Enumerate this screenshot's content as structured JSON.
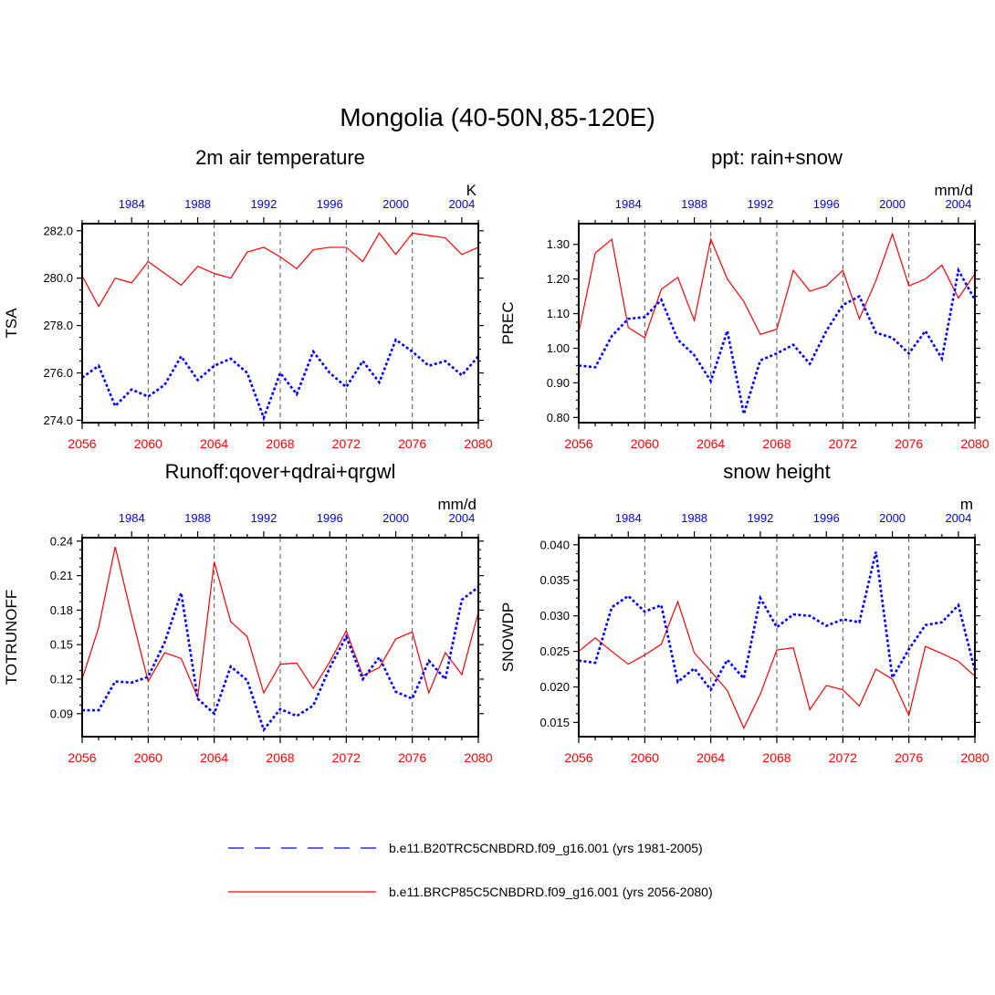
{
  "figure": {
    "title": "Mongolia (40-50N,85-120E)"
  },
  "colors": {
    "future": "#ff0000",
    "historical": "#0000ff",
    "reference_line": "#555555"
  },
  "legend": [
    {
      "style": "dashed",
      "color": "#0000ff",
      "label": "b.e11.B20TRC5CNBDRD.f09_g16.001 (yrs 1981-2005)"
    },
    {
      "style": "solid",
      "color": "#ff0000",
      "label": "b.e11.BRCP85C5CNBDRD.f09_g16.001 (yrs 2056-2080)"
    }
  ],
  "chart_data": [
    {
      "type": "line",
      "title": "2m air temperature",
      "ylabel": "TSA",
      "units": "K",
      "xlim": [
        2056,
        2080
      ],
      "ylim": [
        273.9,
        282.3
      ],
      "ytick_values": [
        274,
        276,
        278,
        280,
        282
      ],
      "ytick_labels": [
        "274.0",
        "276.0",
        "278.0",
        "280.0",
        "282.0"
      ],
      "x_bottom_ticks": [
        2056,
        2060,
        2064,
        2068,
        2072,
        2076,
        2080
      ],
      "x_top_ticks": [
        1984,
        1988,
        1992,
        1996,
        2000,
        2004
      ],
      "reference_years": [
        2060,
        2064,
        2068,
        2072,
        2076
      ],
      "x": [
        2056,
        2057,
        2058,
        2059,
        2060,
        2061,
        2062,
        2063,
        2064,
        2065,
        2066,
        2067,
        2068,
        2069,
        2070,
        2071,
        2072,
        2073,
        2074,
        2075,
        2076,
        2077,
        2078,
        2079,
        2080
      ],
      "series": [
        {
          "name": "b.e11.B20TRC5CNBDRD.f09_g16.001 (yrs 1981-2005)",
          "style": "dashed",
          "color": "#0000ff",
          "values": [
            275.8,
            276.3,
            274.6,
            275.3,
            275.0,
            275.5,
            276.7,
            275.7,
            276.3,
            276.6,
            276.0,
            274.1,
            276.0,
            275.1,
            276.9,
            276.0,
            275.4,
            276.5,
            275.6,
            277.4,
            276.9,
            276.3,
            276.5,
            275.9,
            276.7
          ]
        },
        {
          "name": "b.e11.BRCP85C5CNBDRD.f09_g16.001 (yrs 2056-2080)",
          "style": "solid",
          "color": "#ff0000",
          "values": [
            280.1,
            278.8,
            280.0,
            279.8,
            280.7,
            280.2,
            279.7,
            280.5,
            280.2,
            280.0,
            281.1,
            281.3,
            280.9,
            280.4,
            281.2,
            281.3,
            281.3,
            280.7,
            281.9,
            281.0,
            281.9,
            281.8,
            281.7,
            281.0,
            281.3
          ]
        }
      ]
    },
    {
      "type": "line",
      "title": "ppt: rain+snow",
      "ylabel": "PREC",
      "units": "mm/d",
      "xlim": [
        2056,
        2080
      ],
      "ylim": [
        0.785,
        1.36
      ],
      "ytick_values": [
        0.8,
        0.9,
        1.0,
        1.1,
        1.2,
        1.3
      ],
      "ytick_labels": [
        "0.80",
        "0.90",
        "1.00",
        "1.10",
        "1.20",
        "1.30"
      ],
      "x_bottom_ticks": [
        2056,
        2060,
        2064,
        2068,
        2072,
        2076,
        2080
      ],
      "x_top_ticks": [
        1984,
        1988,
        1992,
        1996,
        2000,
        2004
      ],
      "reference_years": [
        2060,
        2064,
        2068,
        2072,
        2076
      ],
      "x": [
        2056,
        2057,
        2058,
        2059,
        2060,
        2061,
        2062,
        2063,
        2064,
        2065,
        2066,
        2067,
        2068,
        2069,
        2070,
        2071,
        2072,
        2073,
        2074,
        2075,
        2076,
        2077,
        2078,
        2079,
        2080
      ],
      "series": [
        {
          "name": "b.e11.B20TRC5CNBDRD.f09_g16.001 (yrs 1981-2005)",
          "style": "dashed",
          "color": "#0000ff",
          "values": [
            0.95,
            0.945,
            1.035,
            1.085,
            1.09,
            1.14,
            1.025,
            0.98,
            0.905,
            1.05,
            0.81,
            0.965,
            0.985,
            1.01,
            0.955,
            1.05,
            1.125,
            1.15,
            1.045,
            1.03,
            0.985,
            1.05,
            0.97,
            1.225,
            1.14
          ]
        },
        {
          "name": "b.e11.BRCP85C5CNBDRD.f09_g16.001 (yrs 2056-2080)",
          "style": "solid",
          "color": "#ff0000",
          "values": [
            1.045,
            1.275,
            1.315,
            1.06,
            1.03,
            1.17,
            1.205,
            1.08,
            1.315,
            1.2,
            1.135,
            1.04,
            1.055,
            1.225,
            1.165,
            1.18,
            1.225,
            1.085,
            1.195,
            1.33,
            1.18,
            1.2,
            1.24,
            1.145,
            1.215
          ]
        }
      ]
    },
    {
      "type": "line",
      "title": "Runoff:qover+qdrai+qrgwl",
      "ylabel": "TOTRUNOFF",
      "units": "mm/d",
      "xlim": [
        2056,
        2080
      ],
      "ylim": [
        0.07,
        0.243
      ],
      "ytick_values": [
        0.09,
        0.12,
        0.15,
        0.18,
        0.21,
        0.24
      ],
      "ytick_labels": [
        "0.09",
        "0.12",
        "0.15",
        "0.18",
        "0.21",
        "0.24"
      ],
      "x_bottom_ticks": [
        2056,
        2060,
        2064,
        2068,
        2072,
        2076,
        2080
      ],
      "x_top_ticks": [
        1984,
        1988,
        1992,
        1996,
        2000,
        2004
      ],
      "reference_years": [
        2060,
        2064,
        2068,
        2072,
        2076
      ],
      "x": [
        2056,
        2057,
        2058,
        2059,
        2060,
        2061,
        2062,
        2063,
        2064,
        2065,
        2066,
        2067,
        2068,
        2069,
        2070,
        2071,
        2072,
        2073,
        2074,
        2075,
        2076,
        2077,
        2078,
        2079,
        2080
      ],
      "series": [
        {
          "name": "b.e11.B20TRC5CNBDRD.f09_g16.001 (yrs 1981-2005)",
          "style": "dashed",
          "color": "#0000ff",
          "values": [
            0.093,
            0.093,
            0.118,
            0.117,
            0.122,
            0.152,
            0.195,
            0.103,
            0.09,
            0.131,
            0.119,
            0.076,
            0.094,
            0.088,
            0.097,
            0.13,
            0.157,
            0.12,
            0.139,
            0.109,
            0.103,
            0.136,
            0.12,
            0.189,
            0.2
          ]
        },
        {
          "name": "b.e11.BRCP85C5CNBDRD.f09_g16.001 (yrs 2056-2080)",
          "style": "solid",
          "color": "#ff0000",
          "values": [
            0.12,
            0.165,
            0.235,
            0.175,
            0.118,
            0.143,
            0.138,
            0.104,
            0.222,
            0.17,
            0.157,
            0.108,
            0.133,
            0.134,
            0.112,
            0.135,
            0.162,
            0.123,
            0.13,
            0.155,
            0.161,
            0.108,
            0.143,
            0.124,
            0.178
          ]
        }
      ]
    },
    {
      "type": "line",
      "title": "snow height",
      "ylabel": "SNOWDP",
      "units": "m",
      "xlim": [
        2056,
        2080
      ],
      "ylim": [
        0.013,
        0.041
      ],
      "ytick_values": [
        0.015,
        0.02,
        0.025,
        0.03,
        0.035,
        0.04
      ],
      "ytick_labels": [
        "0.015",
        "0.020",
        "0.025",
        "0.030",
        "0.035",
        "0.040"
      ],
      "x_bottom_ticks": [
        2056,
        2060,
        2064,
        2068,
        2072,
        2076,
        2080
      ],
      "x_top_ticks": [
        1984,
        1988,
        1992,
        1996,
        2000,
        2004
      ],
      "reference_years": [
        2060,
        2064,
        2068,
        2072,
        2076
      ],
      "x": [
        2056,
        2057,
        2058,
        2059,
        2060,
        2061,
        2062,
        2063,
        2064,
        2065,
        2066,
        2067,
        2068,
        2069,
        2070,
        2071,
        2072,
        2073,
        2074,
        2075,
        2076,
        2077,
        2078,
        2079,
        2080
      ],
      "series": [
        {
          "name": "b.e11.B20TRC5CNBDRD.f09_g16.001 (yrs 1981-2005)",
          "style": "dashed",
          "color": "#0000ff",
          "values": [
            0.0237,
            0.0234,
            0.0312,
            0.0328,
            0.0306,
            0.0315,
            0.0207,
            0.0226,
            0.0196,
            0.0238,
            0.0212,
            0.0325,
            0.0284,
            0.0302,
            0.03,
            0.0286,
            0.0295,
            0.0291,
            0.039,
            0.0213,
            0.0253,
            0.0287,
            0.0291,
            0.0315,
            0.0223
          ]
        },
        {
          "name": "b.e11.BRCP85C5CNBDRD.f09_g16.001 (yrs 2056-2080)",
          "style": "solid",
          "color": "#ff0000",
          "values": [
            0.025,
            0.0269,
            0.025,
            0.0232,
            0.0245,
            0.026,
            0.032,
            0.0248,
            0.0222,
            0.0195,
            0.0142,
            0.019,
            0.0252,
            0.0255,
            0.0168,
            0.0202,
            0.0196,
            0.0173,
            0.0225,
            0.0211,
            0.016,
            0.0257,
            0.0247,
            0.0236,
            0.0215
          ]
        }
      ]
    }
  ]
}
